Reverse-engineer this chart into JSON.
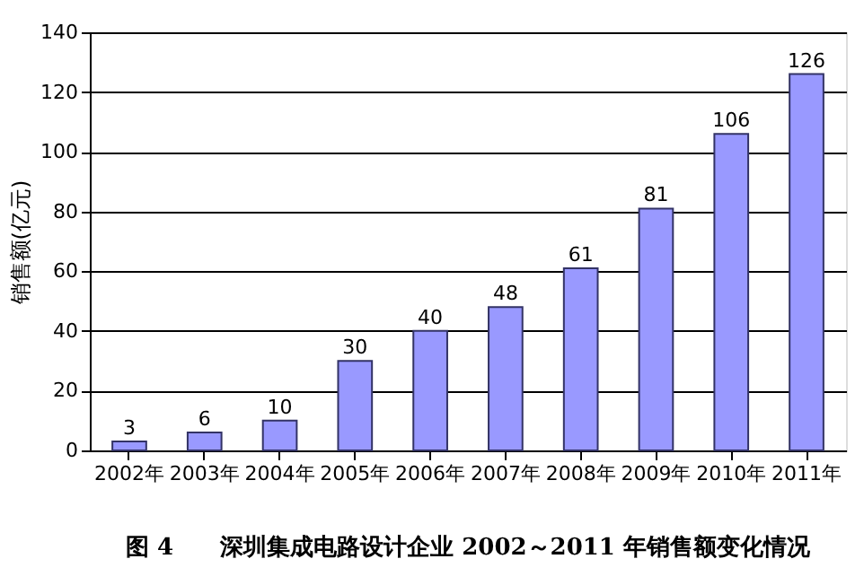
{
  "chart_data": {
    "type": "bar",
    "ylabel": "销售额(亿元)",
    "categories": [
      "2002年",
      "2003年",
      "2004年",
      "2005年",
      "2006年",
      "2007年",
      "2008年",
      "2009年",
      "2010年",
      "2011年"
    ],
    "values": [
      3,
      6,
      10,
      30,
      40,
      48,
      61,
      81,
      106,
      126
    ],
    "color": "#9999ff",
    "ylim": [
      0,
      140
    ],
    "yticks": [
      0,
      20,
      40,
      60,
      80,
      100,
      120,
      140
    ],
    "grid": "y",
    "data_labels": true,
    "annotations": [
      "图 4　　深圳集成电路设计企业 2002～2011 年销售额变化情况"
    ]
  }
}
